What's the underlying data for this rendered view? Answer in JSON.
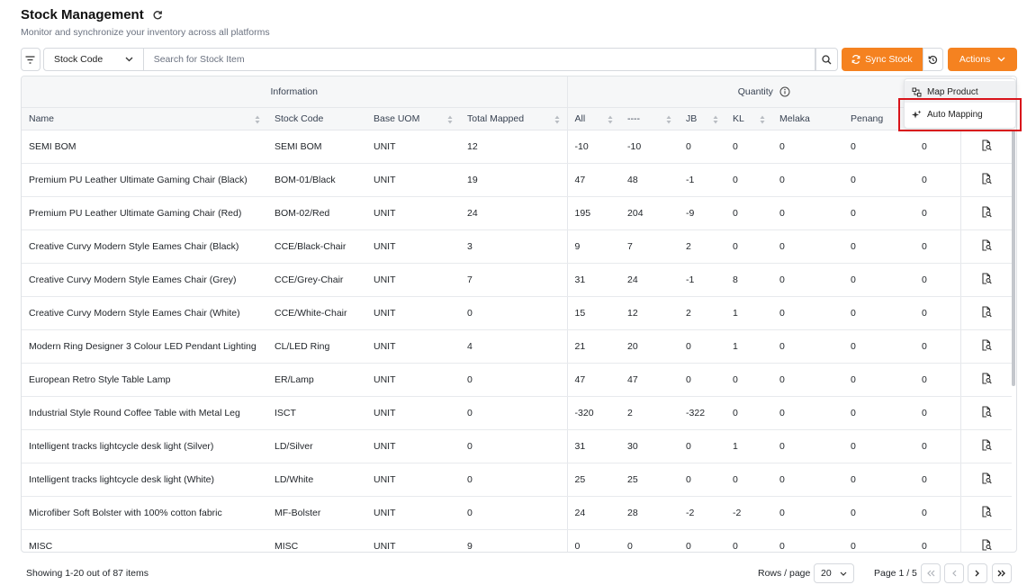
{
  "header": {
    "title": "Stock Management",
    "subtitle": "Monitor and synchronize your inventory across all platforms"
  },
  "toolbar": {
    "filter_field": "Stock Code",
    "search_placeholder": "Search for Stock Item",
    "search_value": "",
    "sync_label": "Sync Stock",
    "actions_label": "Actions"
  },
  "dropdown": {
    "items": [
      "Map Product",
      "Auto Mapping"
    ]
  },
  "table": {
    "groups": {
      "information": "Information",
      "quantity": "Quantity"
    },
    "columns": [
      "Name",
      "Stock Code",
      "Base UOM",
      "Total Mapped",
      "All",
      "----",
      "JB",
      "KL",
      "Melaka",
      "Penang",
      ""
    ],
    "rows": [
      [
        "SEMI BOM",
        "SEMI BOM",
        "UNIT",
        "12",
        "-10",
        "-10",
        "0",
        "0",
        "0",
        "0",
        "0"
      ],
      [
        "Premium PU Leather Ultimate Gaming Chair (Black)",
        "BOM-01/Black",
        "UNIT",
        "19",
        "47",
        "48",
        "-1",
        "0",
        "0",
        "0",
        "0"
      ],
      [
        "Premium PU Leather Ultimate Gaming Chair (Red)",
        "BOM-02/Red",
        "UNIT",
        "24",
        "195",
        "204",
        "-9",
        "0",
        "0",
        "0",
        "0"
      ],
      [
        "Creative Curvy Modern Style Eames Chair (Black)",
        "CCE/Black-Chair",
        "UNIT",
        "3",
        "9",
        "7",
        "2",
        "0",
        "0",
        "0",
        "0"
      ],
      [
        "Creative Curvy Modern Style Eames Chair (Grey)",
        "CCE/Grey-Chair",
        "UNIT",
        "7",
        "31",
        "24",
        "-1",
        "8",
        "0",
        "0",
        "0"
      ],
      [
        "Creative Curvy Modern Style Eames Chair (White)",
        "CCE/White-Chair",
        "UNIT",
        "0",
        "15",
        "12",
        "2",
        "1",
        "0",
        "0",
        "0"
      ],
      [
        "Modern Ring Designer 3 Colour LED Pendant Lighting",
        "CL/LED Ring",
        "UNIT",
        "4",
        "21",
        "20",
        "0",
        "1",
        "0",
        "0",
        "0"
      ],
      [
        "European Retro Style Table Lamp",
        "ER/Lamp",
        "UNIT",
        "0",
        "47",
        "47",
        "0",
        "0",
        "0",
        "0",
        "0"
      ],
      [
        "Industrial Style Round Coffee Table with Metal Leg",
        "ISCT",
        "UNIT",
        "0",
        "-320",
        "2",
        "-322",
        "0",
        "0",
        "0",
        "0"
      ],
      [
        "Intelligent tracks lightcycle desk light (Silver)",
        "LD/Silver",
        "UNIT",
        "0",
        "31",
        "30",
        "0",
        "1",
        "0",
        "0",
        "0"
      ],
      [
        "Intelligent tracks lightcycle desk light (White)",
        "LD/White",
        "UNIT",
        "0",
        "25",
        "25",
        "0",
        "0",
        "0",
        "0",
        "0"
      ],
      [
        "Microfiber Soft Bolster with 100% cotton fabric",
        "MF-Bolster",
        "UNIT",
        "0",
        "24",
        "28",
        "-2",
        "-2",
        "0",
        "0",
        "0"
      ],
      [
        "MISC",
        "MISC",
        "UNIT",
        "9",
        "0",
        "0",
        "0",
        "0",
        "0",
        "0",
        "0"
      ]
    ]
  },
  "footer": {
    "status": "Showing 1-20 out of 87 items",
    "rows_label": "Rows / page",
    "rows_value": "20",
    "page_label": "Page 1 / 5"
  },
  "colors": {
    "accent": "#f58220",
    "highlight": "#d8141b"
  }
}
